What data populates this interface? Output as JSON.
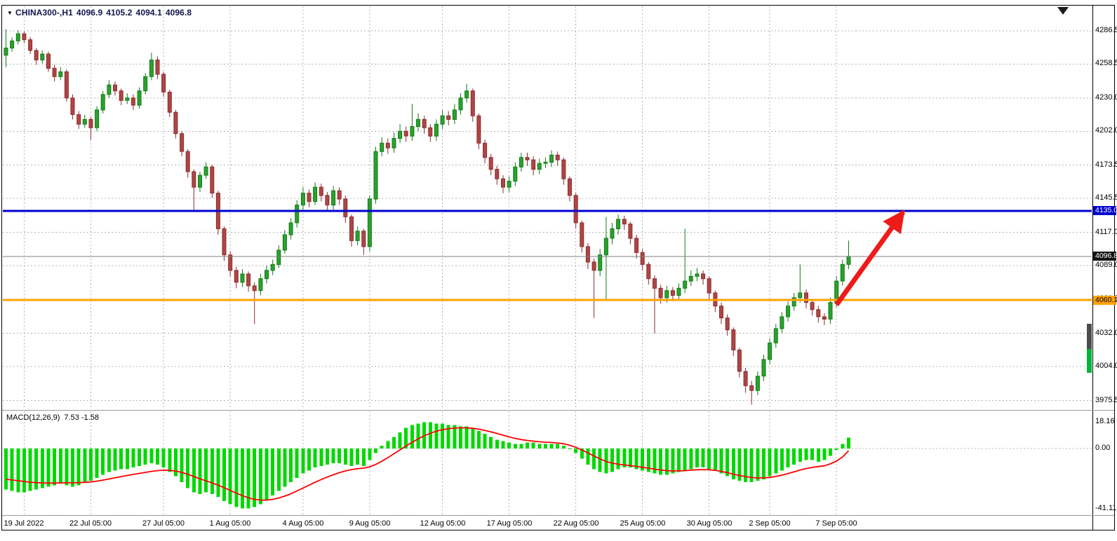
{
  "title": {
    "dropdown_icon": "▼",
    "symbol": "CHINA300-,H1",
    "open": "4096.9",
    "high": "4105.2",
    "low": "4094.1",
    "close": "4096.8"
  },
  "indicator": {
    "name": "MACD(12,26,9)",
    "values": "7.53 -1.58"
  },
  "colors": {
    "bull": "#2aa22e",
    "bull_border": "#117a16",
    "bear": "#b04545",
    "bear_border": "#8a2c2c",
    "grid": "#b3b3b3",
    "resistance": "#0000cd",
    "support": "#ffa200",
    "arrow": "#ee1b1b",
    "macd_hist": "#00d800",
    "macd_signal": "#ff0000",
    "current_price_line": "#828282",
    "border": "#000000"
  },
  "chart_data": [
    {
      "type": "candlestick",
      "symbol": "CHINA300-,H1",
      "timeframe": "H1",
      "grid": true,
      "ylim": [
        3968,
        4308
      ],
      "y_axis_labels": [
        "4286.5",
        "4258.5",
        "4230.0",
        "4202.0",
        "4173.5",
        "4145.5",
        "4117.0",
        "4089.0",
        "4060.5",
        "4032.0",
        "4004.0",
        "3975.5"
      ],
      "x_ticks": [
        {
          "label": "19 Jul 2022",
          "index": 3
        },
        {
          "label": "22 Jul 05:00",
          "index": 14
        },
        {
          "label": "27 Jul 05:00",
          "index": 26
        },
        {
          "label": "1 Aug 05:00",
          "index": 37
        },
        {
          "label": "4 Aug 05:00",
          "index": 49
        },
        {
          "label": "9 Aug 05:00",
          "index": 60
        },
        {
          "label": "12 Aug 05:00",
          "index": 72
        },
        {
          "label": "17 Aug 05:00",
          "index": 83
        },
        {
          "label": "22 Aug 05:00",
          "index": 94
        },
        {
          "label": "25 Aug 05:00",
          "index": 105
        },
        {
          "label": "30 Aug 05:00",
          "index": 116
        },
        {
          "label": "2 Sep 05:00",
          "index": 126
        },
        {
          "label": "7 Sep 05:00",
          "index": 137
        }
      ],
      "hlines": [
        {
          "price": 4135.0,
          "label": "4135.0",
          "role": "resistance",
          "color": "#0000cd"
        },
        {
          "price": 4060.1,
          "label": "4060.1",
          "role": "support",
          "color": "#ffa200"
        }
      ],
      "current_price": {
        "value": 4096.8,
        "label": "4096.8"
      },
      "arrow": {
        "from": {
          "index": 137,
          "price": 4056
        },
        "to": {
          "index": 148,
          "price": 4134
        }
      },
      "candles": [
        [
          4266,
          4288,
          4256,
          4272
        ],
        [
          4272,
          4281,
          4269,
          4278
        ],
        [
          4278,
          4287,
          4275,
          4284
        ],
        [
          4284,
          4286,
          4276,
          4279
        ],
        [
          4279,
          4281,
          4267,
          4270
        ],
        [
          4270,
          4272,
          4258,
          4262
        ],
        [
          4262,
          4270,
          4259,
          4267
        ],
        [
          4267,
          4269,
          4252,
          4255
        ],
        [
          4255,
          4258,
          4244,
          4248
        ],
        [
          4248,
          4256,
          4245,
          4252
        ],
        [
          4252,
          4254,
          4227,
          4230
        ],
        [
          4230,
          4233,
          4212,
          4216
        ],
        [
          4216,
          4219,
          4204,
          4208
        ],
        [
          4208,
          4216,
          4205,
          4212
        ],
        [
          4212,
          4214,
          4195,
          4205
        ],
        [
          4205,
          4223,
          4202,
          4220
        ],
        [
          4220,
          4236,
          4217,
          4233
        ],
        [
          4233,
          4245,
          4230,
          4241
        ],
        [
          4241,
          4244,
          4232,
          4236
        ],
        [
          4236,
          4238,
          4224,
          4228
        ],
        [
          4228,
          4234,
          4225,
          4230
        ],
        [
          4230,
          4233,
          4220,
          4224
        ],
        [
          4224,
          4239,
          4221,
          4236
        ],
        [
          4236,
          4251,
          4233,
          4248
        ],
        [
          4248,
          4268,
          4245,
          4262
        ],
        [
          4262,
          4265,
          4246,
          4250
        ],
        [
          4250,
          4252,
          4231,
          4235
        ],
        [
          4235,
          4237,
          4214,
          4218
        ],
        [
          4218,
          4220,
          4196,
          4200
        ],
        [
          4200,
          4202,
          4181,
          4185
        ],
        [
          4185,
          4187,
          4163,
          4168
        ],
        [
          4168,
          4170,
          4135,
          4155
        ],
        [
          4155,
          4168,
          4151,
          4165
        ],
        [
          4165,
          4176,
          4162,
          4172
        ],
        [
          4172,
          4174,
          4146,
          4150
        ],
        [
          4150,
          4152,
          4115,
          4120
        ],
        [
          4120,
          4122,
          4093,
          4098
        ],
        [
          4098,
          4101,
          4080,
          4085
        ],
        [
          4085,
          4088,
          4070,
          4075
        ],
        [
          4075,
          4086,
          4071,
          4082
        ],
        [
          4082,
          4084,
          4067,
          4072
        ],
        [
          4072,
          4075,
          4040,
          4068
        ],
        [
          4068,
          4082,
          4064,
          4078
        ],
        [
          4078,
          4089,
          4074,
          4085
        ],
        [
          4085,
          4094,
          4081,
          4090
        ],
        [
          4090,
          4106,
          4087,
          4102
        ],
        [
          4102,
          4119,
          4099,
          4115
        ],
        [
          4115,
          4129,
          4111,
          4125
        ],
        [
          4125,
          4144,
          4121,
          4140
        ],
        [
          4140,
          4155,
          4136,
          4150
        ],
        [
          4150,
          4153,
          4138,
          4143
        ],
        [
          4143,
          4159,
          4140,
          4155
        ],
        [
          4155,
          4158,
          4143,
          4148
        ],
        [
          4148,
          4151,
          4135,
          4140
        ],
        [
          4140,
          4156,
          4136,
          4152
        ],
        [
          4152,
          4155,
          4140,
          4145
        ],
        [
          4145,
          4148,
          4125,
          4130
        ],
        [
          4130,
          4132,
          4105,
          4110
        ],
        [
          4110,
          4122,
          4106,
          4118
        ],
        [
          4118,
          4120,
          4098,
          4105
        ],
        [
          4105,
          4148,
          4101,
          4145
        ],
        [
          4145,
          4189,
          4141,
          4185
        ],
        [
          4185,
          4197,
          4181,
          4192
        ],
        [
          4192,
          4196,
          4183,
          4188
        ],
        [
          4188,
          4201,
          4184,
          4196
        ],
        [
          4196,
          4208,
          4192,
          4202
        ],
        [
          4202,
          4206,
          4193,
          4198
        ],
        [
          4198,
          4225,
          4194,
          4206
        ],
        [
          4206,
          4217,
          4202,
          4212
        ],
        [
          4212,
          4215,
          4200,
          4205
        ],
        [
          4205,
          4208,
          4193,
          4198
        ],
        [
          4198,
          4212,
          4194,
          4208
        ],
        [
          4208,
          4220,
          4204,
          4215
        ],
        [
          4215,
          4219,
          4207,
          4212
        ],
        [
          4212,
          4225,
          4208,
          4220
        ],
        [
          4220,
          4234,
          4216,
          4230
        ],
        [
          4230,
          4242,
          4226,
          4236
        ],
        [
          4236,
          4238,
          4210,
          4215
        ],
        [
          4215,
          4217,
          4187,
          4192
        ],
        [
          4192,
          4195,
          4175,
          4180
        ],
        [
          4180,
          4183,
          4165,
          4170
        ],
        [
          4170,
          4173,
          4157,
          4162
        ],
        [
          4162,
          4165,
          4150,
          4155
        ],
        [
          4155,
          4164,
          4151,
          4160
        ],
        [
          4160,
          4176,
          4156,
          4172
        ],
        [
          4172,
          4184,
          4168,
          4180
        ],
        [
          4180,
          4184,
          4173,
          4178
        ],
        [
          4178,
          4181,
          4165,
          4170
        ],
        [
          4170,
          4179,
          4166,
          4175
        ],
        [
          4175,
          4180,
          4171,
          4176
        ],
        [
          4176,
          4186,
          4172,
          4182
        ],
        [
          4182,
          4185,
          4173,
          4178
        ],
        [
          4178,
          4180,
          4157,
          4162
        ],
        [
          4162,
          4164,
          4143,
          4148
        ],
        [
          4148,
          4150,
          4120,
          4125
        ],
        [
          4125,
          4127,
          4100,
          4105
        ],
        [
          4105,
          4108,
          4086,
          4092
        ],
        [
          4092,
          4095,
          4045,
          4085
        ],
        [
          4085,
          4103,
          4080,
          4098
        ],
        [
          4098,
          4130,
          4060,
          4112
        ],
        [
          4112,
          4125,
          4107,
          4120
        ],
        [
          4120,
          4132,
          4115,
          4128
        ],
        [
          4128,
          4131,
          4119,
          4124
        ],
        [
          4124,
          4126,
          4107,
          4112
        ],
        [
          4112,
          4115,
          4095,
          4100
        ],
        [
          4100,
          4103,
          4085,
          4090
        ],
        [
          4090,
          4092,
          4073,
          4078
        ],
        [
          4078,
          4081,
          4032,
          4070
        ],
        [
          4070,
          4073,
          4057,
          4062
        ],
        [
          4062,
          4072,
          4058,
          4068
        ],
        [
          4068,
          4071,
          4059,
          4064
        ],
        [
          4064,
          4074,
          4060,
          4070
        ],
        [
          4070,
          4120,
          4066,
          4076
        ],
        [
          4076,
          4085,
          4072,
          4080
        ],
        [
          4080,
          4087,
          4076,
          4082
        ],
        [
          4082,
          4085,
          4073,
          4078
        ],
        [
          4078,
          4080,
          4061,
          4066
        ],
        [
          4066,
          4068,
          4050,
          4055
        ],
        [
          4055,
          4058,
          4040,
          4045
        ],
        [
          4045,
          4048,
          4030,
          4035
        ],
        [
          4035,
          4037,
          4013,
          4018
        ],
        [
          4018,
          4020,
          3995,
          4000
        ],
        [
          4000,
          4003,
          3982,
          3988
        ],
        [
          3988,
          3992,
          3972,
          3984
        ],
        [
          3984,
          4000,
          3980,
          3996
        ],
        [
          3996,
          4014,
          3992,
          4010
        ],
        [
          4010,
          4028,
          4006,
          4024
        ],
        [
          4024,
          4040,
          4020,
          4036
        ],
        [
          4036,
          4050,
          4032,
          4046
        ],
        [
          4046,
          4059,
          4042,
          4055
        ],
        [
          4055,
          4066,
          4051,
          4062
        ],
        [
          4062,
          4090,
          4058,
          4066
        ],
        [
          4066,
          4069,
          4053,
          4058
        ],
        [
          4058,
          4061,
          4047,
          4052
        ],
        [
          4052,
          4055,
          4041,
          4046
        ],
        [
          4046,
          4049,
          4039,
          4044
        ],
        [
          4044,
          4062,
          4040,
          4058
        ],
        [
          4058,
          4080,
          4054,
          4076
        ],
        [
          4076,
          4094,
          4072,
          4090
        ],
        [
          4090,
          4110,
          4086,
          4096.8
        ]
      ]
    },
    {
      "type": "bar",
      "name": "MACD(12,26,9)",
      "display_values": "7.53 -1.58",
      "legend_position": "top-left",
      "y_axis_labels": [
        {
          "label": "18.16",
          "value": 18.16
        },
        {
          "label": "0.00",
          "value": 0
        },
        {
          "label": "-41.11",
          "value": -41.11
        }
      ],
      "histogram": [
        -28,
        -29,
        -30,
        -30,
        -29,
        -28,
        -27,
        -26,
        -25,
        -24,
        -25,
        -26,
        -25,
        -23,
        -22,
        -20,
        -18,
        -16,
        -15,
        -14,
        -14,
        -13,
        -12,
        -11,
        -10,
        -11,
        -13,
        -16,
        -19,
        -23,
        -27,
        -30,
        -31,
        -30,
        -31,
        -33,
        -36,
        -38,
        -40,
        -41,
        -41,
        -40,
        -38,
        -35,
        -32,
        -29,
        -26,
        -23,
        -20,
        -17,
        -15,
        -13,
        -12,
        -11,
        -10,
        -10,
        -11,
        -12,
        -11,
        -12,
        -8,
        -3,
        2,
        5,
        8,
        11,
        14,
        16,
        17,
        18,
        18,
        17,
        17,
        16,
        16,
        15,
        15,
        14,
        12,
        10,
        8,
        6,
        5,
        4,
        3,
        3,
        4,
        4,
        3,
        3,
        3,
        3,
        2,
        0,
        -3,
        -7,
        -11,
        -14,
        -16,
        -17,
        -16,
        -14,
        -13,
        -13,
        -14,
        -15,
        -16,
        -17,
        -18,
        -18,
        -17,
        -16,
        -15,
        -14,
        -13,
        -13,
        -14,
        -15,
        -17,
        -19,
        -21,
        -22,
        -23,
        -23,
        -22,
        -21,
        -19,
        -17,
        -15,
        -13,
        -11,
        -9,
        -8,
        -8,
        -9,
        -8,
        -5,
        -1,
        3,
        7.53
      ],
      "signal": [
        -21,
        -21.5,
        -22,
        -22.5,
        -23,
        -23.3,
        -23.5,
        -23.6,
        -23.6,
        -23.5,
        -23.4,
        -23.4,
        -23.3,
        -23.1,
        -22.8,
        -22.3,
        -21.6,
        -20.8,
        -20,
        -19.2,
        -18.4,
        -17.7,
        -17,
        -16.3,
        -15.6,
        -15.1,
        -14.8,
        -14.9,
        -15.4,
        -16.3,
        -17.6,
        -19.1,
        -20.7,
        -22.1,
        -23.5,
        -25,
        -26.8,
        -28.6,
        -30.5,
        -32.2,
        -33.7,
        -34.7,
        -35.2,
        -35.2,
        -34.7,
        -33.8,
        -32.5,
        -30.9,
        -29,
        -27,
        -25,
        -23,
        -21.2,
        -19.5,
        -17.9,
        -16.5,
        -15.3,
        -14.4,
        -13.8,
        -13.4,
        -12.5,
        -10.9,
        -8.7,
        -6.2,
        -3.6,
        -0.9,
        1.7,
        4.2,
        6.6,
        8.7,
        10.4,
        11.8,
        12.8,
        13.5,
        13.9,
        14.1,
        14.1,
        13.8,
        13.2,
        12.4,
        11.4,
        10.3,
        9.1,
        7.9,
        6.9,
        6.1,
        5.5,
        5,
        4.6,
        4.3,
        4.1,
        3.8,
        3.2,
        2.2,
        0.8,
        -1,
        -3,
        -5.1,
        -7.1,
        -8.9,
        -10,
        -10.7,
        -11.2,
        -11.7,
        -12.2,
        -12.8,
        -13.4,
        -14.1,
        -14.7,
        -15.1,
        -15.3,
        -15.3,
        -15.1,
        -14.8,
        -14.5,
        -14.4,
        -14.5,
        -14.9,
        -15.6,
        -16.5,
        -17.5,
        -18.4,
        -19.2,
        -19.8,
        -20.1,
        -20.1,
        -19.7,
        -19.1,
        -18.2,
        -17.1,
        -15.9,
        -14.7,
        -13.7,
        -12.9,
        -12.3,
        -11.8,
        -10.5,
        -8.6,
        -5.8,
        -1.58
      ]
    }
  ]
}
